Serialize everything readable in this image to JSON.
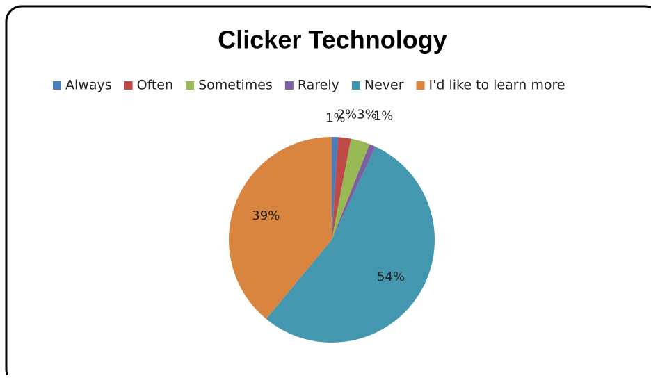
{
  "chart_data": {
    "type": "pie",
    "title": "Clicker Technology",
    "categories": [
      "Always",
      "Often",
      "Sometimes",
      "Rarely",
      "Never",
      "I'd like to learn more"
    ],
    "values": [
      1,
      2,
      3,
      1,
      54,
      39
    ],
    "value_labels": [
      "1%",
      "2%",
      "3%",
      "1%",
      "54%",
      "39%"
    ],
    "colors": [
      "#4a7ebb",
      "#be4b48",
      "#98b954",
      "#7d60a0",
      "#4398b0",
      "#d9843f"
    ],
    "legend": "top"
  }
}
